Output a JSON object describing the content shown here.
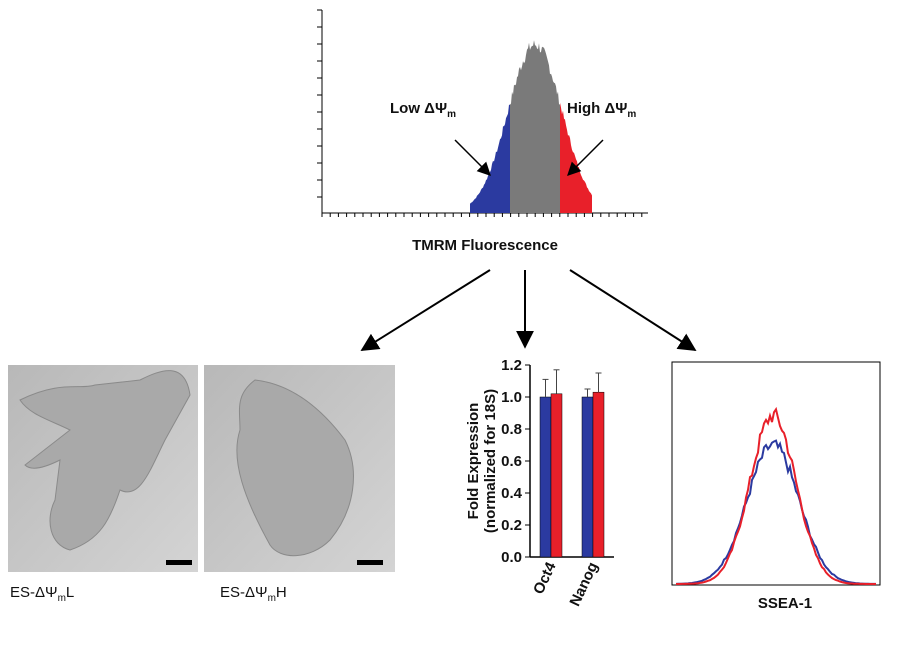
{
  "panels": {
    "tmrm": {
      "x_label": "TMRM Fluorescence",
      "low": {
        "text": "Low ΔΨ",
        "sub": "m"
      },
      "high": {
        "text": "High ΔΨ",
        "sub": "m"
      }
    },
    "images": [
      {
        "text": "ES-ΔΨ",
        "sub": "m",
        "suffix": "L"
      },
      {
        "text": "ES-ΔΨ",
        "sub": "m",
        "suffix": "H"
      }
    ],
    "ssea": {
      "x_label": "SSEA-1"
    }
  },
  "chart_data": {
    "type": "bar",
    "y_label": [
      "Fold Expression",
      "(normalized for 18S)"
    ],
    "categories": [
      "Oct4",
      "Nanog"
    ],
    "series": [
      {
        "color": "#2b3aa0",
        "values": [
          1.0,
          1.0
        ],
        "errors": [
          0.11,
          0.05
        ]
      },
      {
        "color": "#e8202a",
        "values": [
          1.02,
          1.03
        ],
        "errors": [
          0.15,
          0.12
        ]
      }
    ],
    "ylim": [
      0,
      1.2
    ],
    "yticks": [
      {
        "value": 0,
        "label": "0.0"
      },
      {
        "value": 0.2,
        "label": "0.2"
      },
      {
        "value": 0.4,
        "label": "0.4"
      },
      {
        "value": 0.6,
        "label": "0.6"
      },
      {
        "value": 0.8,
        "label": "0.8"
      },
      {
        "value": 1,
        "label": "1.0"
      },
      1.2
    ]
  }
}
